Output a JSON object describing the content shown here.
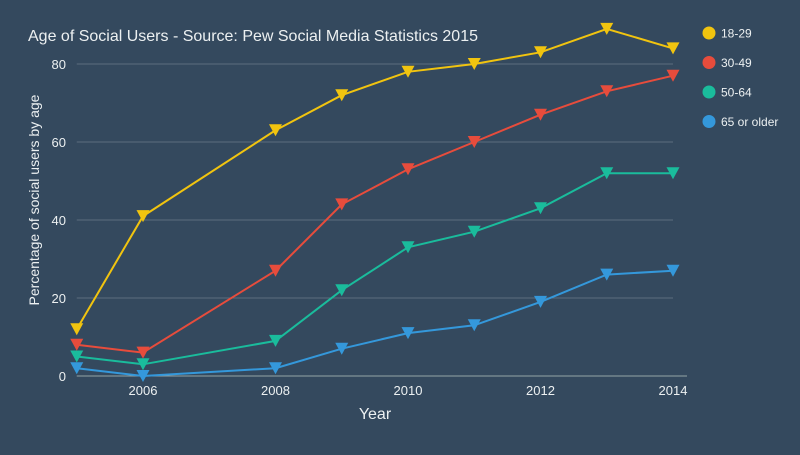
{
  "chart_data": {
    "type": "line",
    "title": "Age of Social Users - Source: Pew Social Media Statistics 2015",
    "xlabel": "Year",
    "ylabel": "Percentage of social users by age",
    "x": [
      2005,
      2006,
      2008,
      2009,
      2010,
      2011,
      2012,
      2013,
      2014
    ],
    "xlim": [
      2005,
      2014
    ],
    "ylim": [
      0,
      80
    ],
    "xticks": [
      "2006",
      "2008",
      "2010",
      "2012",
      "2014"
    ],
    "yticks": [
      "0",
      "20",
      "40",
      "60",
      "80"
    ],
    "grid": true,
    "legend": "right",
    "marker": "triangle-down",
    "series": [
      {
        "name": "18-29",
        "color": "#f1c40f",
        "values": [
          12,
          41,
          63,
          72,
          78,
          80,
          83,
          89,
          84
        ]
      },
      {
        "name": "30-49",
        "color": "#e74c3c",
        "values": [
          8,
          6,
          27,
          44,
          53,
          60,
          67,
          73,
          77
        ]
      },
      {
        "name": "50-64",
        "color": "#1abc9c",
        "values": [
          5,
          3,
          9,
          22,
          33,
          37,
          43,
          52,
          52
        ]
      },
      {
        "name": "65 or older",
        "color": "#3498db",
        "values": [
          2,
          0,
          2,
          7,
          11,
          13,
          19,
          26,
          27
        ]
      }
    ]
  }
}
